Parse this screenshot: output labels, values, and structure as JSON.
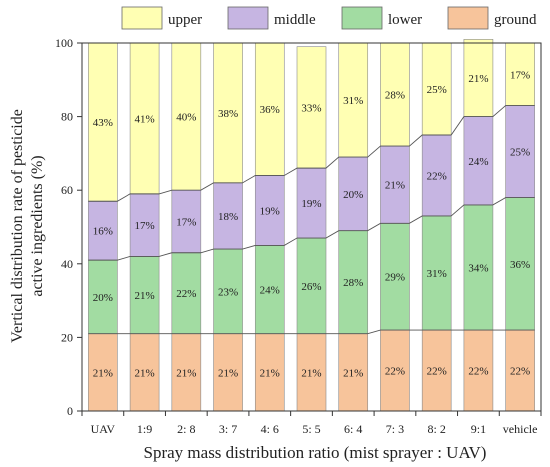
{
  "chart_data": {
    "type": "bar",
    "stacked": true,
    "title": "",
    "xlabel": "Spray mass distribution ratio (mist sprayer : UAV)",
    "ylabel_lines": [
      "Vertical distribution rate of pesticide",
      "active ingredients (%)"
    ],
    "ylim": [
      0,
      100
    ],
    "yticks": [
      "0",
      "20",
      "40",
      "60",
      "80",
      "100"
    ],
    "legend_position": "top",
    "categories": [
      "UAV",
      "1:9",
      "2: 8",
      "3: 7",
      "4: 6",
      "5: 5",
      "6: 4",
      "7: 3",
      "8: 2",
      "9:1",
      "vehicle"
    ],
    "series": [
      {
        "name": "ground",
        "color": "#f7c49b",
        "values": [
          21,
          21,
          21,
          21,
          21,
          21,
          21,
          22,
          22,
          22,
          22
        ],
        "labels": [
          "21%",
          "21%",
          "21%",
          "21%",
          "21%",
          "21%",
          "21%",
          "22%",
          "22%",
          "22%",
          "22%"
        ]
      },
      {
        "name": "lower",
        "color": "#a2dca2",
        "values": [
          20,
          21,
          22,
          23,
          24,
          26,
          28,
          29,
          31,
          34,
          36
        ],
        "labels": [
          "20%",
          "21%",
          "22%",
          "23%",
          "24%",
          "26%",
          "28%",
          "29%",
          "31%",
          "34%",
          "36%"
        ]
      },
      {
        "name": "middle",
        "color": "#c6b5e2",
        "values": [
          16,
          17,
          17,
          18,
          19,
          19,
          20,
          21,
          22,
          24,
          25
        ],
        "labels": [
          "16%",
          "17%",
          "17%",
          "18%",
          "19%",
          "19%",
          "20%",
          "21%",
          "22%",
          "24%",
          "25%"
        ]
      },
      {
        "name": "upper",
        "color": "#ffffb3",
        "values": [
          43,
          41,
          40,
          38,
          36,
          33,
          31,
          28,
          25,
          21,
          17
        ],
        "labels": [
          "43%",
          "41%",
          "40%",
          "38%",
          "36%",
          "33%",
          "31%",
          "28%",
          "25%",
          "21%",
          "17%"
        ]
      }
    ],
    "legend_order": [
      "upper",
      "middle",
      "lower",
      "ground"
    ]
  }
}
